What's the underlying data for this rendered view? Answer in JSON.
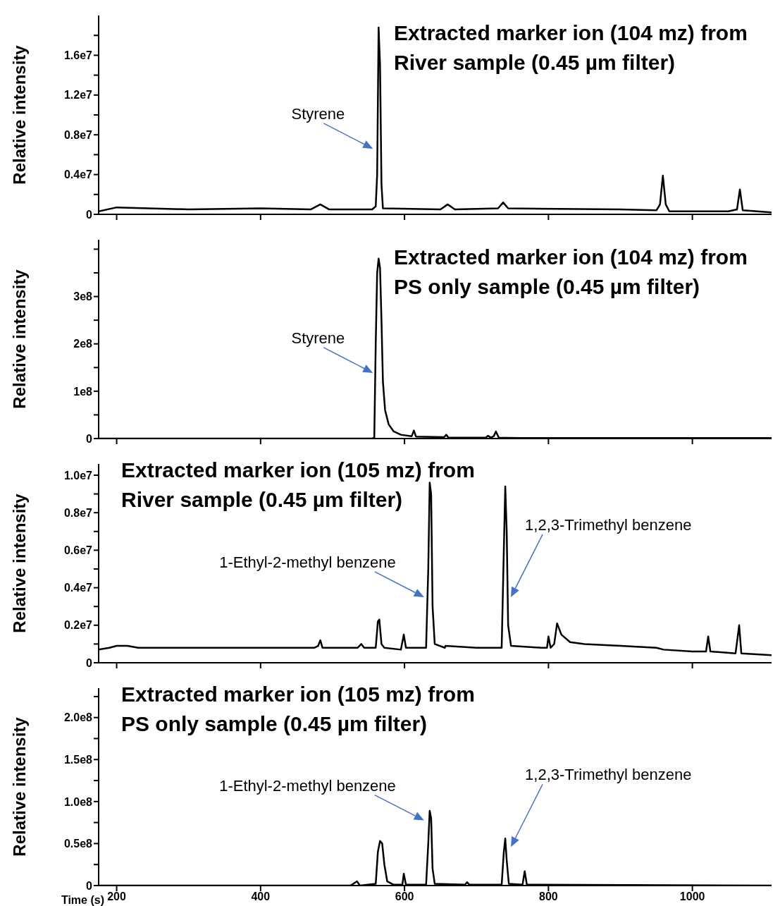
{
  "chart_data": [
    {
      "type": "line",
      "title": "Extracted marker ion (104 mz) from River sample (0.45 µm filter)",
      "ylabel": "Relative intensity",
      "tick_labels": "y",
      "xlim": [
        175,
        1110
      ],
      "xticks": [
        200,
        400,
        600,
        800,
        1000
      ],
      "ylim": [
        0,
        20000000
      ],
      "yticks": [
        {
          "value": 0,
          "label": "0"
        },
        {
          "value": 2000000,
          "label": null
        },
        {
          "value": 4000000,
          "label": "0.4e7"
        },
        {
          "value": 6000000,
          "label": null
        },
        {
          "value": 8000000,
          "label": "0.8e7"
        },
        {
          "value": 10000000,
          "label": null
        },
        {
          "value": 12000000,
          "label": "1.2e7"
        },
        {
          "value": 14000000,
          "label": null
        },
        {
          "value": 16000000,
          "label": "1.6e7"
        },
        {
          "value": 18000000,
          "label": null
        }
      ],
      "x": [
        175,
        200,
        300,
        400,
        470,
        483,
        495,
        555,
        560,
        562,
        564,
        566,
        568,
        570,
        650,
        660,
        670,
        730,
        737,
        744,
        900,
        950,
        955,
        959,
        963,
        968,
        1050,
        1062,
        1066,
        1070,
        1110
      ],
      "series": [
        {
          "color": "#000000",
          "values": [
            300000,
            700000,
            500000,
            600000,
            500000,
            1000000,
            500000,
            500000,
            800000,
            4000000,
            18800000,
            15000000,
            3000000,
            600000,
            500000,
            1000000,
            500000,
            600000,
            1200000,
            600000,
            500000,
            400000,
            1000000,
            3900000,
            1000000,
            300000,
            300000,
            500000,
            2500000,
            400000,
            200000
          ]
        }
      ],
      "annotations": [
        "Styrene"
      ]
    },
    {
      "type": "line",
      "title": "Extracted marker ion (104 mz) from PS only sample (0.45 µm filter)",
      "ylabel": "Relative intensity",
      "tick_labels": "y",
      "xlim": [
        175,
        1110
      ],
      "xticks": [
        200,
        400,
        600,
        800,
        1000
      ],
      "ylim": [
        0,
        420000000
      ],
      "yticks": [
        {
          "value": 0,
          "label": "0"
        },
        {
          "value": 50000000,
          "label": null
        },
        {
          "value": 100000000,
          "label": "1e8"
        },
        {
          "value": 150000000,
          "label": null
        },
        {
          "value": 200000000,
          "label": "2e8"
        },
        {
          "value": 250000000,
          "label": null
        },
        {
          "value": 300000000,
          "label": "3e8"
        },
        {
          "value": 350000000,
          "label": null
        },
        {
          "value": 400000000,
          "label": null
        }
      ],
      "x": [
        175,
        555,
        558,
        560,
        562,
        564,
        566,
        568,
        570,
        573,
        578,
        585,
        595,
        610,
        613,
        616,
        655,
        658,
        661,
        713,
        716,
        720,
        724,
        727,
        731,
        760,
        1110
      ],
      "series": [
        {
          "color": "#000000",
          "values": [
            0,
            0,
            2000000,
            200000000,
            350000000,
            380000000,
            360000000,
            250000000,
            120000000,
            60000000,
            30000000,
            15000000,
            8000000,
            5000000,
            17000000,
            4000000,
            3000000,
            8000000,
            2000000,
            2000000,
            6000000,
            2000000,
            5000000,
            15000000,
            2000000,
            1000000,
            1000000
          ]
        }
      ],
      "annotations": [
        "Styrene"
      ]
    },
    {
      "type": "line",
      "title": "Extracted marker ion (105 mz) from River sample (0.45 µm filter)",
      "ylabel": "Relative intensity",
      "tick_labels": "y",
      "xlim": [
        175,
        1110
      ],
      "xticks": [
        200,
        400,
        600,
        800,
        1000
      ],
      "ylim": [
        0,
        10600000
      ],
      "yticks": [
        {
          "value": 0,
          "label": "0"
        },
        {
          "value": 1000000,
          "label": null
        },
        {
          "value": 2000000,
          "label": "0.2e7"
        },
        {
          "value": 3000000,
          "label": null
        },
        {
          "value": 4000000,
          "label": "0.4e7"
        },
        {
          "value": 5000000,
          "label": null
        },
        {
          "value": 6000000,
          "label": "0.6e7"
        },
        {
          "value": 7000000,
          "label": null
        },
        {
          "value": 8000000,
          "label": "0.8e7"
        },
        {
          "value": 9000000,
          "label": null
        },
        {
          "value": 10000000,
          "label": "1.0e7"
        }
      ],
      "x": [
        175,
        190,
        200,
        215,
        230,
        300,
        400,
        475,
        480,
        483,
        486,
        535,
        540,
        544,
        560,
        563,
        565,
        568,
        572,
        595,
        599,
        602,
        630,
        633,
        635,
        637,
        639,
        642,
        656,
        657,
        700,
        735,
        738,
        740,
        742,
        744,
        748,
        790,
        798,
        800,
        803,
        808,
        812,
        818,
        830,
        850,
        900,
        950,
        960,
        1000,
        1019,
        1022,
        1025,
        1060,
        1065,
        1068,
        1110
      ],
      "series": [
        {
          "color": "#000000",
          "values": [
            700000,
            800000,
            900000,
            900000,
            800000,
            800000,
            800000,
            800000,
            900000,
            1200000,
            800000,
            800000,
            1000000,
            800000,
            800000,
            2200000,
            2300000,
            1000000,
            800000,
            700000,
            1500000,
            800000,
            800000,
            5000000,
            9600000,
            9000000,
            3000000,
            1000000,
            800000,
            900000,
            800000,
            800000,
            6000000,
            9400000,
            7000000,
            2000000,
            900000,
            800000,
            800000,
            1400000,
            800000,
            1000000,
            2100000,
            1500000,
            1100000,
            1000000,
            900000,
            800000,
            700000,
            600000,
            600000,
            1400000,
            600000,
            500000,
            2000000,
            500000,
            400000
          ]
        }
      ],
      "annotations": [
        "1-Ethyl-2-methyl benzene",
        "1,2,3-Trimethyl benzene"
      ]
    },
    {
      "type": "line",
      "title": "Extracted marker ion (105 mz) from PS only sample (0.45 µm filter)",
      "xlabel": "Time (s)",
      "ylabel": "Relative intensity",
      "xlim": [
        175,
        1110
      ],
      "xticks": [
        200,
        400,
        600,
        800,
        1000
      ],
      "ylim": [
        0,
        235000000
      ],
      "yticks": [
        {
          "value": 0,
          "label": "0"
        },
        {
          "value": 25000000,
          "label": null
        },
        {
          "value": 50000000,
          "label": "0.5e8"
        },
        {
          "value": 75000000,
          "label": null
        },
        {
          "value": 100000000,
          "label": "1.0e8"
        },
        {
          "value": 125000000,
          "label": null
        },
        {
          "value": 150000000,
          "label": "1.5e8"
        },
        {
          "value": 175000000,
          "label": null
        },
        {
          "value": 200000000,
          "label": "2.0e8"
        },
        {
          "value": 225000000,
          "label": null
        }
      ],
      "x": [
        175,
        525,
        534,
        538,
        560,
        563,
        566,
        569,
        572,
        576,
        585,
        597,
        599,
        602,
        630,
        633,
        635,
        637,
        639,
        642,
        684,
        687,
        690,
        735,
        738,
        740,
        742,
        745,
        764,
        767,
        770,
        1110
      ],
      "series": [
        {
          "color": "#000000",
          "values": [
            0,
            0,
            5000000,
            0,
            2000000,
            40000000,
            53000000,
            50000000,
            25000000,
            5000000,
            1000000,
            1000000,
            14000000,
            1000000,
            1000000,
            50000000,
            89000000,
            80000000,
            20000000,
            2000000,
            1000000,
            4000000,
            1000000,
            1000000,
            40000000,
            56000000,
            30000000,
            2000000,
            1000000,
            17000000,
            1000000,
            0
          ]
        }
      ],
      "annotations": [
        "1-Ethyl-2-methyl benzene",
        "1,2,3-Trimethyl benzene"
      ]
    }
  ]
}
